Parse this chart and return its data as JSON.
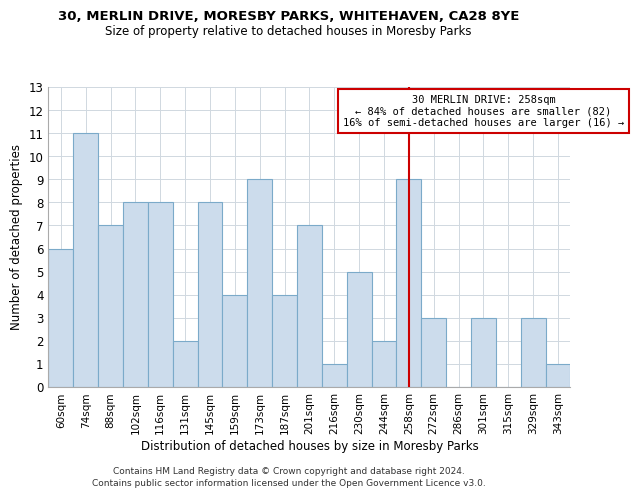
{
  "title1": "30, MERLIN DRIVE, MORESBY PARKS, WHITEHAVEN, CA28 8YE",
  "title2": "Size of property relative to detached houses in Moresby Parks",
  "xlabel": "Distribution of detached houses by size in Moresby Parks",
  "ylabel": "Number of detached properties",
  "footer1": "Contains HM Land Registry data © Crown copyright and database right 2024.",
  "footer2": "Contains public sector information licensed under the Open Government Licence v3.0.",
  "bin_labels": [
    "60sqm",
    "74sqm",
    "88sqm",
    "102sqm",
    "116sqm",
    "131sqm",
    "145sqm",
    "159sqm",
    "173sqm",
    "187sqm",
    "201sqm",
    "216sqm",
    "230sqm",
    "244sqm",
    "258sqm",
    "272sqm",
    "286sqm",
    "301sqm",
    "315sqm",
    "329sqm",
    "343sqm"
  ],
  "bar_values": [
    6,
    11,
    7,
    8,
    8,
    2,
    8,
    4,
    9,
    4,
    7,
    1,
    5,
    2,
    9,
    3,
    0,
    3,
    0,
    3,
    1
  ],
  "bar_color": "#ccdcec",
  "bar_edge_color": "#7baac9",
  "highlight_index": 14,
  "highlight_line_color": "#cc0000",
  "annotation_line1": "30 MERLIN DRIVE: 258sqm",
  "annotation_line2": "← 84% of detached houses are smaller (82)",
  "annotation_line3": "16% of semi-detached houses are larger (16) →",
  "annotation_box_edge_color": "#cc0000",
  "ylim": [
    0,
    13
  ],
  "yticks": [
    0,
    1,
    2,
    3,
    4,
    5,
    6,
    7,
    8,
    9,
    10,
    11,
    12,
    13
  ],
  "background_color": "#ffffff",
  "grid_color": "#d0d8e0"
}
